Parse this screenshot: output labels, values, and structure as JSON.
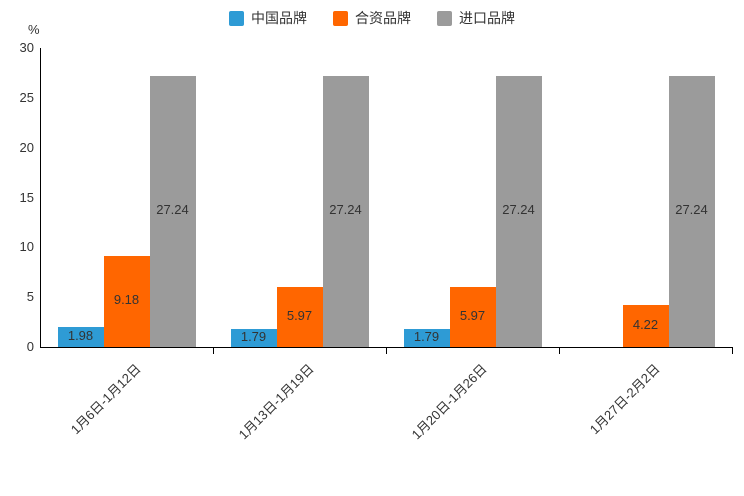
{
  "chart_data": {
    "type": "bar",
    "title": "",
    "unit": "%",
    "categories": [
      "1月6日-1月12日",
      "1月13日-1月19日",
      "1月20日-1月26日",
      "1月27日-2月2日"
    ],
    "series": [
      {
        "name": "中国品牌",
        "color": "#2e9bd5",
        "values": [
          1.98,
          1.79,
          1.79,
          null
        ]
      },
      {
        "name": "合资品牌",
        "color": "#ff6600",
        "values": [
          9.18,
          5.97,
          5.97,
          4.22
        ]
      },
      {
        "name": "进口品牌",
        "color": "#9b9b9b",
        "values": [
          27.24,
          27.24,
          27.24,
          27.24
        ]
      }
    ],
    "ylim": [
      0,
      30
    ],
    "yticks": [
      0,
      5,
      10,
      15,
      20,
      25,
      30
    ],
    "legend_position": "top",
    "grid": false,
    "data_labels": "inside-center"
  }
}
